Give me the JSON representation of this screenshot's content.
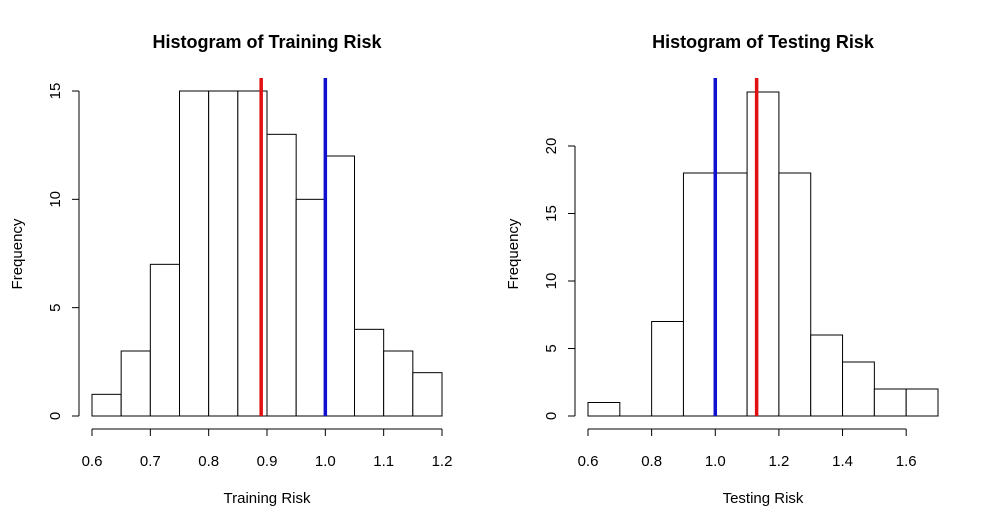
{
  "chart_data": [
    {
      "type": "bar",
      "title": "Histogram of Training Risk",
      "xlabel": "Training Risk",
      "ylabel": "Frequency",
      "bin_edges": [
        0.6,
        0.65,
        0.7,
        0.75,
        0.8,
        0.85,
        0.9,
        0.95,
        1.0,
        1.05,
        1.1,
        1.15,
        1.2
      ],
      "values": [
        1,
        3,
        7,
        15,
        15,
        15,
        13,
        10,
        12,
        4,
        3,
        2
      ],
      "xlim": [
        0.6,
        1.2
      ],
      "ylim": [
        0,
        15
      ],
      "x_ticks": [
        0.6,
        0.7,
        0.8,
        0.9,
        1.0,
        1.1,
        1.2
      ],
      "x_tick_labels": [
        "0.6",
        "0.7",
        "0.8",
        "0.9",
        "1.0",
        "1.1",
        "1.2"
      ],
      "y_ticks": [
        0,
        5,
        10,
        15
      ],
      "y_tick_labels": [
        "0",
        "5",
        "10",
        "15"
      ],
      "vlines": [
        {
          "x": 0.89,
          "color": "#e01010"
        },
        {
          "x": 1.0,
          "color": "#1010d0"
        }
      ],
      "grid": false
    },
    {
      "type": "bar",
      "title": "Histogram of Testing Risk",
      "xlabel": "Testing Risk",
      "ylabel": "Frequency",
      "bin_edges": [
        0.6,
        0.7,
        0.8,
        0.9,
        1.0,
        1.1,
        1.2,
        1.3,
        1.4,
        1.5,
        1.6,
        1.7
      ],
      "values": [
        1,
        0,
        7,
        18,
        18,
        24,
        18,
        6,
        4,
        2,
        2
      ],
      "xlim": [
        0.6,
        1.6
      ],
      "ylim": [
        0,
        20
      ],
      "x_ticks": [
        0.6,
        0.8,
        1.0,
        1.2,
        1.4,
        1.6
      ],
      "x_tick_labels": [
        "0.6",
        "0.8",
        "1.0",
        "1.2",
        "1.4",
        "1.6"
      ],
      "y_ticks": [
        0,
        5,
        10,
        15,
        20
      ],
      "y_tick_labels": [
        "0",
        "5",
        "10",
        "15",
        "20"
      ],
      "vlines": [
        {
          "x": 1.0,
          "color": "#1010d0"
        },
        {
          "x": 1.13,
          "color": "#e01010"
        }
      ],
      "grid": false
    }
  ]
}
